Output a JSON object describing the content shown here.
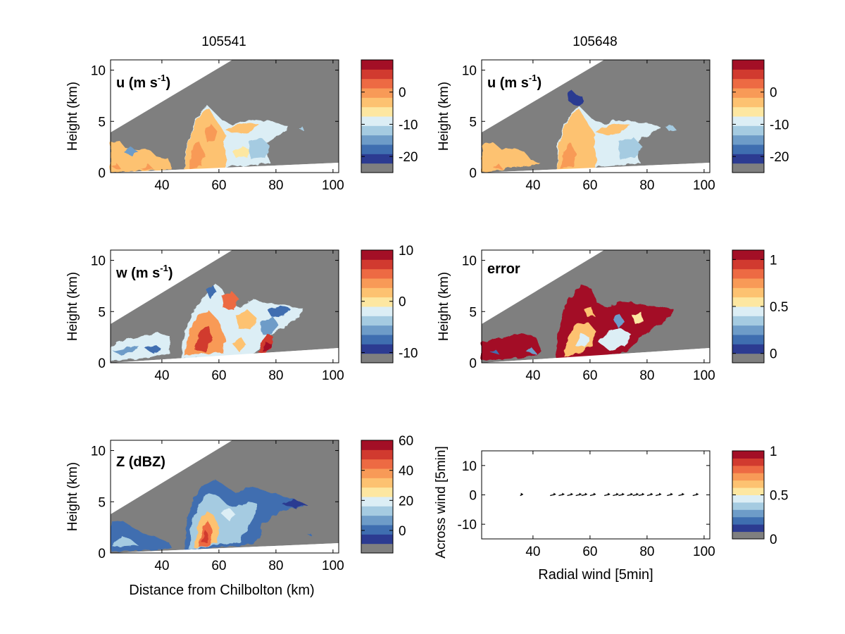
{
  "figure_titles": [
    "105541",
    "105648"
  ],
  "colorbar_palette": [
    "#7f7f7f",
    "#2c3b91",
    "#3f6eb0",
    "#6e9cc8",
    "#a5cbe1",
    "#dceef5",
    "#fde7a1",
    "#fdc271",
    "#f89a57",
    "#ed6a43",
    "#d13a2f",
    "#a30f26"
  ],
  "chart_data": [
    {
      "type": "heatmap",
      "panel": "u-105541",
      "title": "105541",
      "label": "u (m s",
      "label_sup": "-1",
      "label_close": ")",
      "xlabel": "",
      "ylabel": "Height (km)",
      "xlim": [
        22,
        102
      ],
      "ylim": [
        0,
        11
      ],
      "xticks": [
        "40",
        "60",
        "80",
        "100"
      ],
      "yticks": [
        "0",
        "5",
        "10"
      ],
      "colorbar": {
        "range": [
          -25,
          10
        ],
        "ticks": [
          "0",
          "-10",
          "-20"
        ]
      }
    },
    {
      "type": "heatmap",
      "panel": "u-105648",
      "title": "105648",
      "label": "u (m s",
      "label_sup": "-1",
      "label_close": ")",
      "xlabel": "",
      "ylabel": "Height (km)",
      "xlim": [
        22,
        102
      ],
      "ylim": [
        0,
        11
      ],
      "xticks": [
        "40",
        "60",
        "80",
        "100"
      ],
      "yticks": [
        "0",
        "5",
        "10"
      ],
      "colorbar": {
        "range": [
          -25,
          10
        ],
        "ticks": [
          "0",
          "-10",
          "-20"
        ]
      }
    },
    {
      "type": "heatmap",
      "panel": "w-105541",
      "label": "w (m s",
      "label_sup": "-1",
      "label_close": ")",
      "xlabel": "",
      "ylabel": "Height (km)",
      "xlim": [
        22,
        102
      ],
      "ylim": [
        0,
        11
      ],
      "xticks": [
        "40",
        "60",
        "80",
        "100"
      ],
      "yticks": [
        "0",
        "5",
        "10"
      ],
      "colorbar": {
        "range": [
          -12,
          10
        ],
        "ticks": [
          "10",
          "0",
          "-10"
        ]
      }
    },
    {
      "type": "heatmap",
      "panel": "error-105648",
      "label": "error",
      "xlabel": "",
      "ylabel": "Height (km)",
      "xlim": [
        22,
        102
      ],
      "ylim": [
        0,
        11
      ],
      "xticks": [
        "40",
        "60",
        "80",
        "100"
      ],
      "yticks": [
        "0",
        "5",
        "10"
      ],
      "colorbar": {
        "range": [
          -0.1,
          1.1
        ],
        "ticks": [
          "1",
          "0.5",
          "0"
        ]
      }
    },
    {
      "type": "heatmap",
      "panel": "Z-105541",
      "label": "Z (dBZ)",
      "xlabel": "Distance from Chilbolton (km)",
      "ylabel": "Height (km)",
      "xlim": [
        22,
        102
      ],
      "ylim": [
        0,
        11
      ],
      "xticks": [
        "40",
        "60",
        "80",
        "100"
      ],
      "yticks": [
        "0",
        "5",
        "10"
      ],
      "colorbar": {
        "range": [
          -15,
          60
        ],
        "ticks": [
          "60",
          "40",
          "20",
          "0"
        ]
      }
    },
    {
      "type": "scatter",
      "panel": "wind-vectors",
      "xlabel": "Radial wind [5min]",
      "ylabel": "Across wind [5min]",
      "xlim": [
        22,
        102
      ],
      "ylim": [
        -15,
        15
      ],
      "xticks": [
        "40",
        "60",
        "80",
        "100"
      ],
      "yticks": [
        "10",
        "0",
        "-10"
      ],
      "points": [
        [
          36,
          0
        ],
        [
          47,
          0
        ],
        [
          50,
          0
        ],
        [
          53,
          0
        ],
        [
          56,
          0
        ],
        [
          58,
          0
        ],
        [
          61,
          0
        ],
        [
          66,
          0
        ],
        [
          69,
          0
        ],
        [
          71,
          0
        ],
        [
          74,
          0
        ],
        [
          76,
          0
        ],
        [
          78,
          0
        ],
        [
          81,
          0
        ],
        [
          84,
          0
        ],
        [
          88,
          0
        ],
        [
          92,
          0
        ],
        [
          97,
          0
        ]
      ],
      "colorbar": {
        "range": [
          0,
          1
        ],
        "ticks": [
          "1",
          "0.5",
          "0"
        ]
      }
    }
  ]
}
